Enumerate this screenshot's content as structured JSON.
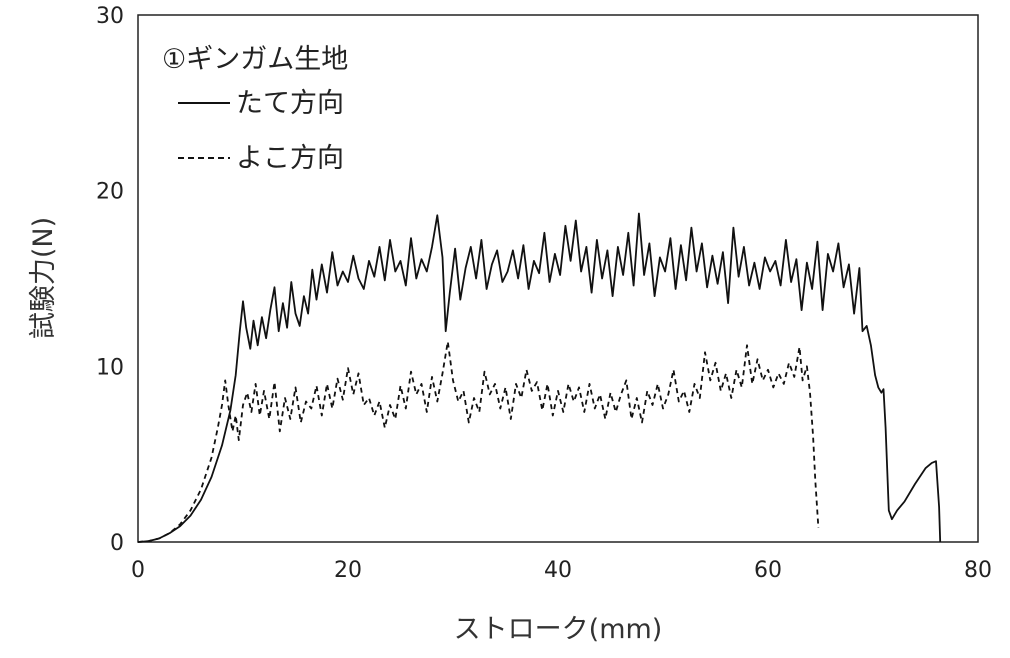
{
  "chart_data": {
    "type": "line",
    "title": "",
    "xlabel": "ストローク(mm)",
    "ylabel": "試験力(N)",
    "xlim": [
      0,
      80
    ],
    "ylim": [
      0,
      30
    ],
    "x_ticks": [
      "0",
      "20",
      "40",
      "60",
      "80"
    ],
    "y_ticks": [
      "0",
      "10",
      "20",
      "30"
    ],
    "grid": false,
    "legend": {
      "placement": "top-left",
      "heading": "①ギンガム生地"
    },
    "series": [
      {
        "name": "たて方向",
        "style": "solid",
        "color": "#111111",
        "points": [
          [
            0,
            0
          ],
          [
            1.0,
            0.05
          ],
          [
            2.0,
            0.2
          ],
          [
            3.0,
            0.5
          ],
          [
            4.0,
            0.9
          ],
          [
            5.0,
            1.5
          ],
          [
            6.0,
            2.4
          ],
          [
            7.0,
            3.7
          ],
          [
            8.0,
            5.5
          ],
          [
            8.8,
            7.5
          ],
          [
            9.3,
            9.5
          ],
          [
            9.7,
            12.0
          ],
          [
            10.0,
            13.7
          ],
          [
            10.3,
            12.2
          ],
          [
            10.7,
            11.0
          ],
          [
            11.0,
            12.6
          ],
          [
            11.4,
            11.2
          ],
          [
            11.8,
            12.8
          ],
          [
            12.2,
            11.6
          ],
          [
            12.6,
            13.2
          ],
          [
            13.0,
            14.5
          ],
          [
            13.4,
            12.0
          ],
          [
            13.8,
            13.6
          ],
          [
            14.2,
            12.2
          ],
          [
            14.6,
            14.8
          ],
          [
            15.0,
            13.0
          ],
          [
            15.4,
            12.3
          ],
          [
            15.8,
            14.0
          ],
          [
            16.2,
            13.0
          ],
          [
            16.6,
            15.5
          ],
          [
            17.0,
            13.8
          ],
          [
            17.5,
            15.8
          ],
          [
            18.0,
            14.2
          ],
          [
            18.5,
            16.5
          ],
          [
            19.0,
            14.6
          ],
          [
            19.5,
            15.4
          ],
          [
            20.0,
            14.8
          ],
          [
            20.5,
            16.3
          ],
          [
            21.0,
            15.0
          ],
          [
            21.5,
            14.4
          ],
          [
            22.0,
            16.0
          ],
          [
            22.5,
            15.1
          ],
          [
            23.0,
            16.8
          ],
          [
            23.5,
            14.9
          ],
          [
            24.0,
            17.2
          ],
          [
            24.5,
            15.4
          ],
          [
            25.0,
            16.0
          ],
          [
            25.5,
            14.6
          ],
          [
            26.0,
            17.3
          ],
          [
            26.5,
            15.0
          ],
          [
            27.0,
            16.1
          ],
          [
            27.5,
            15.4
          ],
          [
            28.0,
            16.8
          ],
          [
            28.5,
            18.6
          ],
          [
            29.0,
            16.2
          ],
          [
            29.3,
            12.0
          ],
          [
            29.7,
            14.2
          ],
          [
            30.2,
            16.7
          ],
          [
            30.7,
            13.8
          ],
          [
            31.2,
            15.6
          ],
          [
            31.7,
            16.8
          ],
          [
            32.2,
            15.0
          ],
          [
            32.7,
            17.2
          ],
          [
            33.2,
            14.4
          ],
          [
            33.7,
            15.8
          ],
          [
            34.2,
            16.6
          ],
          [
            34.7,
            14.8
          ],
          [
            35.2,
            15.4
          ],
          [
            35.7,
            16.6
          ],
          [
            36.2,
            15.0
          ],
          [
            36.7,
            16.9
          ],
          [
            37.2,
            14.4
          ],
          [
            37.7,
            16.0
          ],
          [
            38.2,
            15.3
          ],
          [
            38.7,
            17.6
          ],
          [
            39.2,
            14.8
          ],
          [
            39.7,
            16.4
          ],
          [
            40.2,
            15.2
          ],
          [
            40.7,
            18.0
          ],
          [
            41.2,
            16.0
          ],
          [
            41.7,
            18.3
          ],
          [
            42.2,
            15.4
          ],
          [
            42.7,
            16.8
          ],
          [
            43.2,
            14.2
          ],
          [
            43.7,
            17.2
          ],
          [
            44.2,
            15.0
          ],
          [
            44.7,
            16.6
          ],
          [
            45.2,
            14.0
          ],
          [
            45.7,
            16.8
          ],
          [
            46.2,
            15.2
          ],
          [
            46.7,
            17.6
          ],
          [
            47.2,
            14.6
          ],
          [
            47.7,
            18.7
          ],
          [
            48.2,
            15.2
          ],
          [
            48.7,
            17.0
          ],
          [
            49.2,
            14.0
          ],
          [
            49.7,
            16.2
          ],
          [
            50.2,
            15.4
          ],
          [
            50.7,
            17.3
          ],
          [
            51.2,
            14.4
          ],
          [
            51.7,
            16.9
          ],
          [
            52.2,
            14.9
          ],
          [
            52.7,
            17.9
          ],
          [
            53.2,
            15.4
          ],
          [
            53.7,
            17.0
          ],
          [
            54.2,
            14.5
          ],
          [
            54.7,
            16.3
          ],
          [
            55.2,
            14.7
          ],
          [
            55.7,
            16.5
          ],
          [
            56.2,
            13.6
          ],
          [
            56.7,
            17.9
          ],
          [
            57.2,
            15.1
          ],
          [
            57.7,
            16.8
          ],
          [
            58.2,
            14.6
          ],
          [
            58.7,
            15.9
          ],
          [
            59.2,
            14.4
          ],
          [
            59.7,
            16.2
          ],
          [
            60.2,
            15.4
          ],
          [
            60.7,
            16.0
          ],
          [
            61.2,
            14.6
          ],
          [
            61.7,
            17.2
          ],
          [
            62.2,
            14.8
          ],
          [
            62.7,
            16.1
          ],
          [
            63.2,
            13.2
          ],
          [
            63.7,
            15.9
          ],
          [
            64.2,
            14.4
          ],
          [
            64.7,
            17.1
          ],
          [
            65.2,
            13.2
          ],
          [
            65.7,
            16.4
          ],
          [
            66.2,
            15.4
          ],
          [
            66.7,
            17.0
          ],
          [
            67.2,
            14.5
          ],
          [
            67.7,
            15.8
          ],
          [
            68.2,
            13.0
          ],
          [
            68.7,
            15.6
          ],
          [
            69.0,
            12.0
          ],
          [
            69.4,
            12.3
          ],
          [
            69.8,
            11.2
          ],
          [
            70.2,
            9.5
          ],
          [
            70.5,
            8.8
          ],
          [
            70.8,
            8.5
          ],
          [
            71.0,
            8.7
          ],
          [
            71.2,
            6.5
          ],
          [
            71.5,
            1.8
          ],
          [
            71.8,
            1.3
          ],
          [
            72.3,
            1.8
          ],
          [
            73.0,
            2.3
          ],
          [
            74.0,
            3.3
          ],
          [
            75.0,
            4.2
          ],
          [
            75.6,
            4.5
          ],
          [
            76.0,
            4.6
          ],
          [
            76.3,
            2.0
          ],
          [
            76.4,
            0
          ]
        ]
      },
      {
        "name": "よこ方向",
        "style": "dashed",
        "color": "#111111",
        "points": [
          [
            0,
            0
          ],
          [
            1.0,
            0.05
          ],
          [
            2.0,
            0.2
          ],
          [
            3.0,
            0.5
          ],
          [
            4.0,
            1.0
          ],
          [
            5.0,
            1.8
          ],
          [
            6.0,
            3.0
          ],
          [
            7.0,
            4.8
          ],
          [
            7.6,
            6.5
          ],
          [
            8.0,
            7.8
          ],
          [
            8.3,
            9.2
          ],
          [
            8.6,
            7.8
          ],
          [
            9.0,
            6.3
          ],
          [
            9.3,
            7.2
          ],
          [
            9.6,
            5.8
          ],
          [
            10.0,
            7.8
          ],
          [
            10.4,
            8.5
          ],
          [
            10.8,
            7.4
          ],
          [
            11.2,
            9.0
          ],
          [
            11.6,
            7.2
          ],
          [
            12.0,
            8.6
          ],
          [
            12.5,
            7.0
          ],
          [
            13.0,
            9.1
          ],
          [
            13.5,
            6.3
          ],
          [
            14.0,
            8.2
          ],
          [
            14.5,
            7.0
          ],
          [
            15.0,
            8.8
          ],
          [
            15.5,
            6.8
          ],
          [
            16.0,
            8.0
          ],
          [
            16.5,
            7.6
          ],
          [
            17.0,
            8.9
          ],
          [
            17.5,
            7.2
          ],
          [
            18.0,
            9.0
          ],
          [
            18.5,
            7.6
          ],
          [
            19.0,
            9.3
          ],
          [
            19.5,
            8.1
          ],
          [
            20.0,
            9.9
          ],
          [
            20.5,
            8.4
          ],
          [
            21.0,
            9.6
          ],
          [
            21.5,
            7.8
          ],
          [
            22.0,
            8.2
          ],
          [
            22.5,
            7.2
          ],
          [
            23.0,
            8.0
          ],
          [
            23.5,
            6.5
          ],
          [
            24.0,
            7.8
          ],
          [
            24.5,
            7.0
          ],
          [
            25.0,
            8.9
          ],
          [
            25.5,
            7.6
          ],
          [
            26.0,
            9.7
          ],
          [
            26.5,
            8.4
          ],
          [
            27.0,
            9.0
          ],
          [
            27.5,
            7.4
          ],
          [
            28.0,
            9.4
          ],
          [
            28.5,
            8.0
          ],
          [
            29.0,
            9.6
          ],
          [
            29.5,
            11.4
          ],
          [
            30.0,
            9.2
          ],
          [
            30.5,
            8.0
          ],
          [
            31.0,
            8.6
          ],
          [
            31.5,
            6.8
          ],
          [
            32.0,
            8.2
          ],
          [
            32.5,
            7.4
          ],
          [
            33.0,
            9.7
          ],
          [
            33.5,
            8.4
          ],
          [
            34.0,
            9.0
          ],
          [
            34.5,
            7.6
          ],
          [
            35.0,
            8.8
          ],
          [
            35.5,
            7.0
          ],
          [
            36.0,
            9.0
          ],
          [
            36.5,
            8.2
          ],
          [
            37.0,
            9.8
          ],
          [
            37.5,
            8.6
          ],
          [
            38.0,
            9.1
          ],
          [
            38.5,
            7.5
          ],
          [
            39.0,
            9.0
          ],
          [
            39.5,
            7.2
          ],
          [
            40.0,
            8.6
          ],
          [
            40.5,
            7.4
          ],
          [
            41.0,
            9.0
          ],
          [
            41.5,
            8.0
          ],
          [
            42.0,
            8.8
          ],
          [
            42.5,
            7.4
          ],
          [
            43.0,
            9.0
          ],
          [
            43.5,
            7.6
          ],
          [
            44.0,
            8.4
          ],
          [
            44.5,
            7.0
          ],
          [
            45.0,
            8.5
          ],
          [
            45.5,
            7.4
          ],
          [
            46.0,
            8.4
          ],
          [
            46.5,
            9.2
          ],
          [
            47.0,
            7.0
          ],
          [
            47.5,
            8.2
          ],
          [
            48.0,
            6.8
          ],
          [
            48.5,
            8.6
          ],
          [
            49.0,
            7.8
          ],
          [
            49.5,
            9.0
          ],
          [
            50.0,
            7.6
          ],
          [
            50.5,
            8.4
          ],
          [
            51.0,
            9.8
          ],
          [
            51.5,
            8.0
          ],
          [
            52.0,
            8.6
          ],
          [
            52.5,
            7.4
          ],
          [
            53.0,
            9.0
          ],
          [
            53.5,
            8.2
          ],
          [
            54.0,
            10.8
          ],
          [
            54.5,
            9.2
          ],
          [
            55.0,
            10.2
          ],
          [
            55.5,
            8.6
          ],
          [
            56.0,
            9.6
          ],
          [
            56.5,
            8.2
          ],
          [
            57.0,
            9.8
          ],
          [
            57.5,
            8.8
          ],
          [
            58.0,
            11.2
          ],
          [
            58.5,
            9.0
          ],
          [
            59.0,
            10.4
          ],
          [
            59.5,
            9.2
          ],
          [
            60.0,
            9.8
          ],
          [
            60.5,
            8.8
          ],
          [
            61.0,
            9.6
          ],
          [
            61.5,
            9.0
          ],
          [
            62.0,
            10.2
          ],
          [
            62.5,
            9.4
          ],
          [
            63.0,
            11.1
          ],
          [
            63.3,
            9.2
          ],
          [
            63.7,
            10.0
          ],
          [
            64.0,
            8.5
          ],
          [
            64.3,
            6.0
          ],
          [
            64.5,
            3.5
          ],
          [
            64.8,
            0.8
          ]
        ]
      }
    ]
  }
}
